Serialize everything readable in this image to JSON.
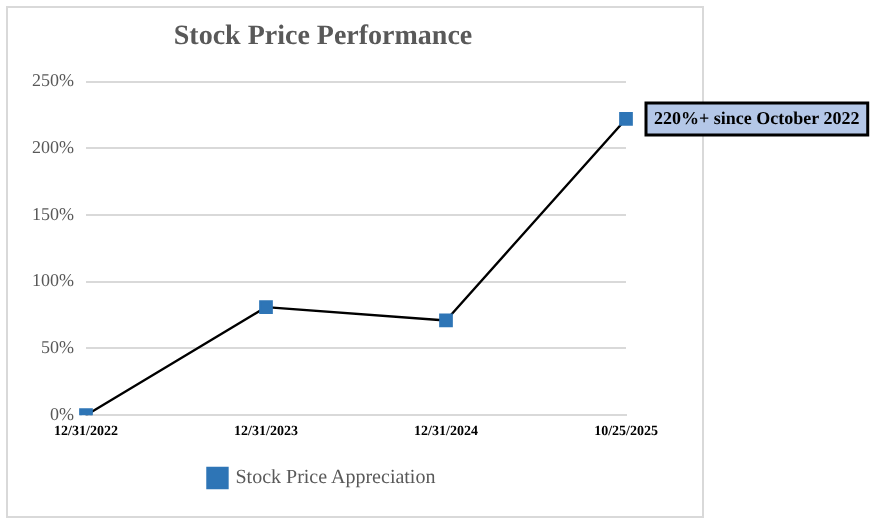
{
  "chart_data": {
    "type": "line",
    "title": "Stock Price Performance",
    "categories": [
      "12/31/2022",
      "12/31/2023",
      "12/31/2024",
      "10/25/2025"
    ],
    "series": [
      {
        "name": "Stock Price Appreciation",
        "color": "#2e75b6",
        "values": [
          0,
          81,
          71,
          222
        ]
      }
    ],
    "ylim": [
      0,
      250
    ],
    "yticks": [
      {
        "value": 0,
        "label": "0%"
      },
      {
        "value": 50,
        "label": "50%"
      },
      {
        "value": 100,
        "label": "100%"
      },
      {
        "value": 150,
        "label": "150%"
      },
      {
        "value": 200,
        "label": "200%"
      },
      {
        "value": 250,
        "label": "250%"
      }
    ],
    "grid": "y",
    "legend": "bottom",
    "marker": "square",
    "line_style": "solid",
    "annotations": [
      {
        "text": "220%+ since October 2022",
        "x": "10/25/2025",
        "y": 222
      }
    ]
  }
}
